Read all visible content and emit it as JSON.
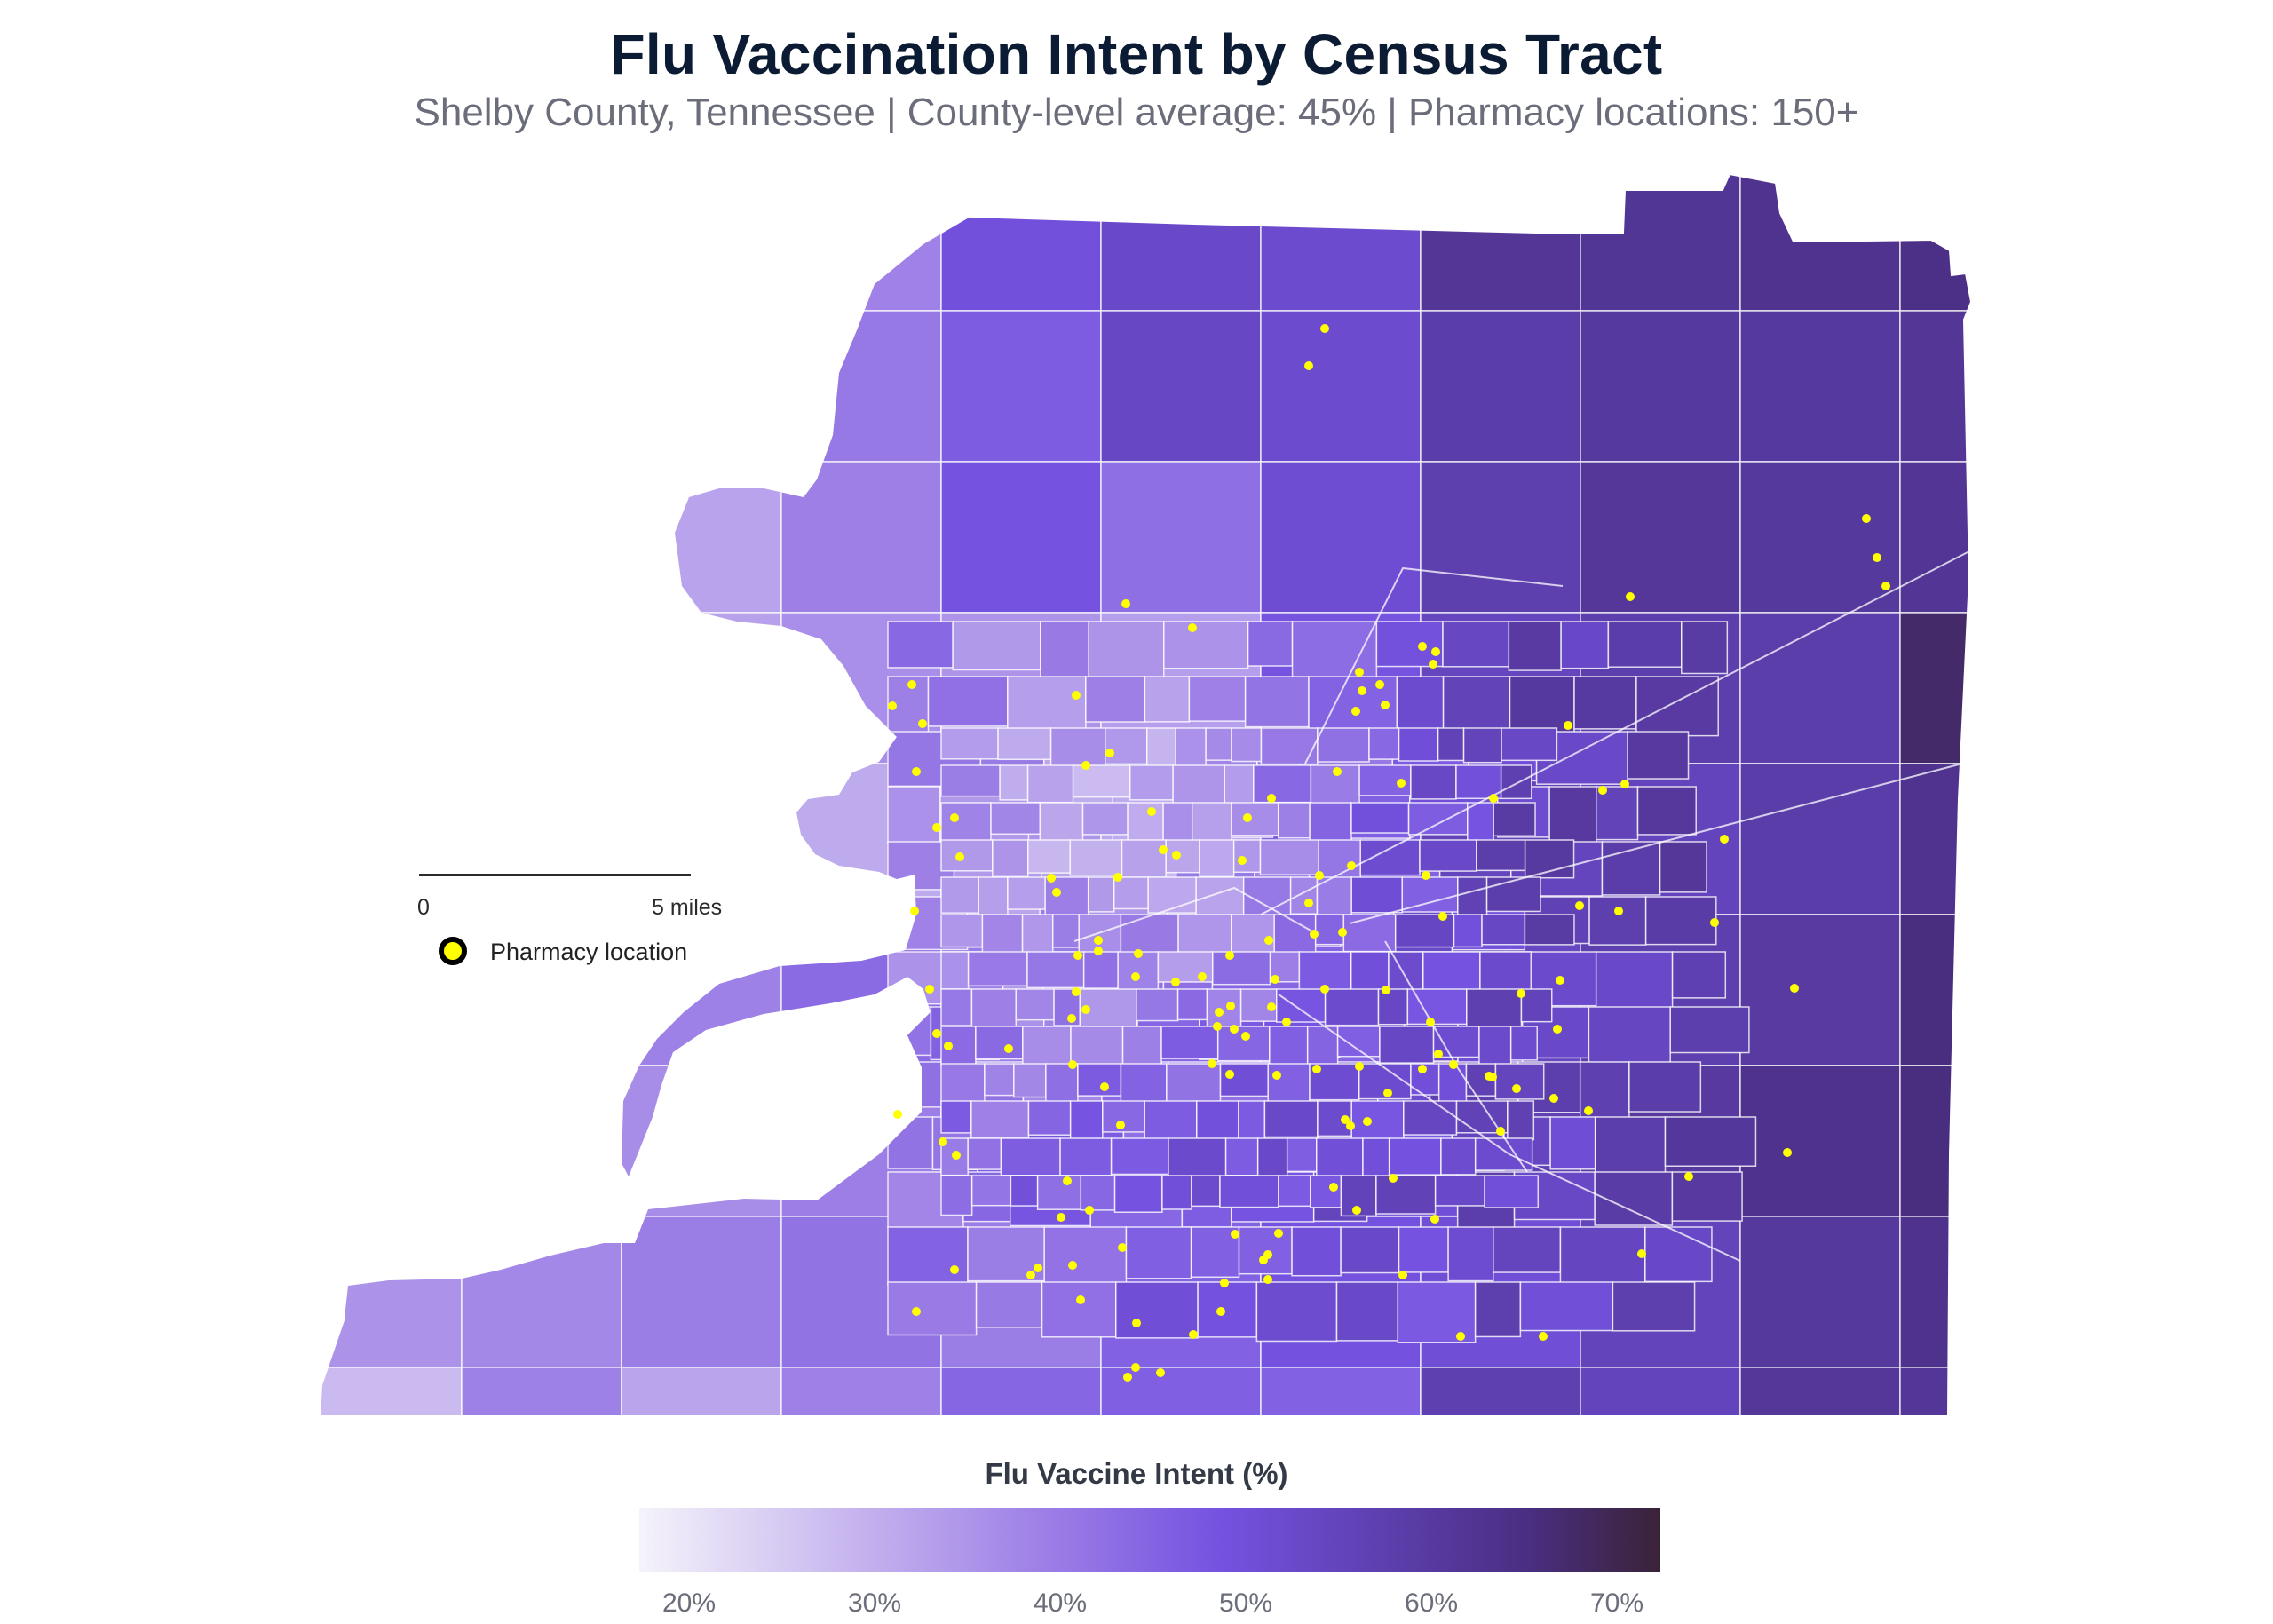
{
  "header": {
    "title": "Flu Vaccination Intent by Census Tract",
    "subtitle": "Shelby County, Tennessee | County-level average: 45% | Pharmacy locations: 150+"
  },
  "scale_bar": {
    "start_label": "0",
    "end_label": "5 miles"
  },
  "legend": {
    "pharmacy_label": "Pharmacy location",
    "pharmacy_color": "#ffff00"
  },
  "colorbar": {
    "title": "Flu Vaccine Intent (%)",
    "ticks": [
      "20%",
      "30%",
      "40%",
      "50%",
      "60%",
      "70%"
    ],
    "tick_values": [
      20,
      30,
      40,
      50,
      60,
      70
    ],
    "range": [
      17,
      72
    ],
    "colors": [
      "#f5f3fa",
      "#c4b2ee",
      "#9c7ee6",
      "#7552e0",
      "#5d3fae",
      "#4a2e82",
      "#3a2338"
    ]
  },
  "chart_data": {
    "type": "choropleth",
    "value_label": "Flu Vaccine Intent (%)",
    "county_average": 45,
    "pharmacy_count_label": "150+"
  }
}
